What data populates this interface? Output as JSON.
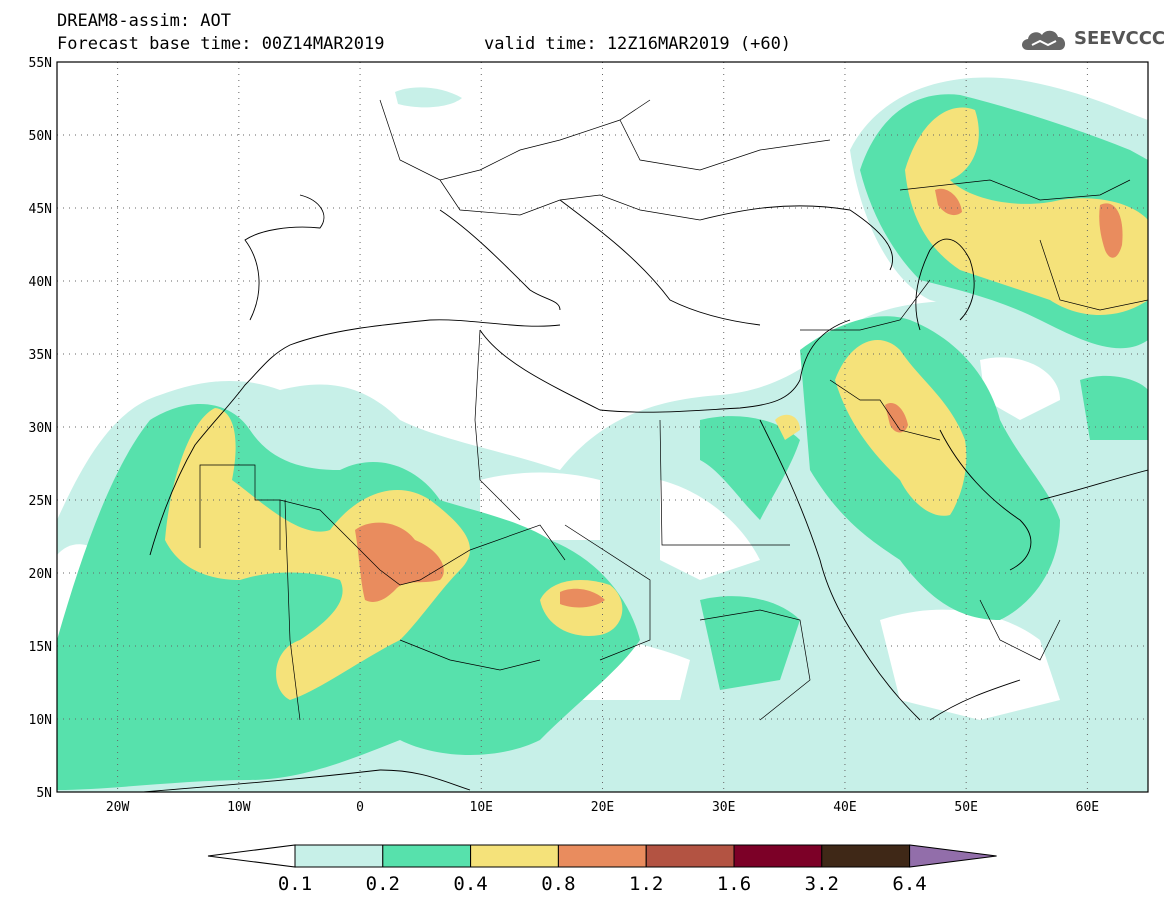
{
  "header": {
    "product": "DREAM8-assim: AOT",
    "base_time": "Forecast base time: 00Z14MAR2019",
    "valid_time": "valid time: 12Z16MAR2019 (+60)"
  },
  "logo": {
    "text": "SEEVCCC",
    "icon": "cloud-icon"
  },
  "map": {
    "lat_labels": [
      "55N",
      "50N",
      "45N",
      "40N",
      "35N",
      "30N",
      "25N",
      "20N",
      "15N",
      "10N",
      "5N"
    ],
    "lon_labels": [
      "20W",
      "10W",
      "0",
      "10E",
      "20E",
      "30E",
      "40E",
      "50E",
      "60E"
    ],
    "lon_range": [
      -25,
      65
    ],
    "lat_range": [
      5,
      55
    ],
    "grid": "dotted"
  },
  "colorbar": {
    "ticks": [
      "0.1",
      "0.2",
      "0.4",
      "0.8",
      "1.2",
      "1.6",
      "3.2",
      "6.4"
    ],
    "colors": [
      "#ffffff",
      "#c7f0e8",
      "#57e1ac",
      "#f5e27a",
      "#e98c5e",
      "#b35342",
      "#7c0027",
      "#3f2817",
      "#926eaa"
    ]
  }
}
